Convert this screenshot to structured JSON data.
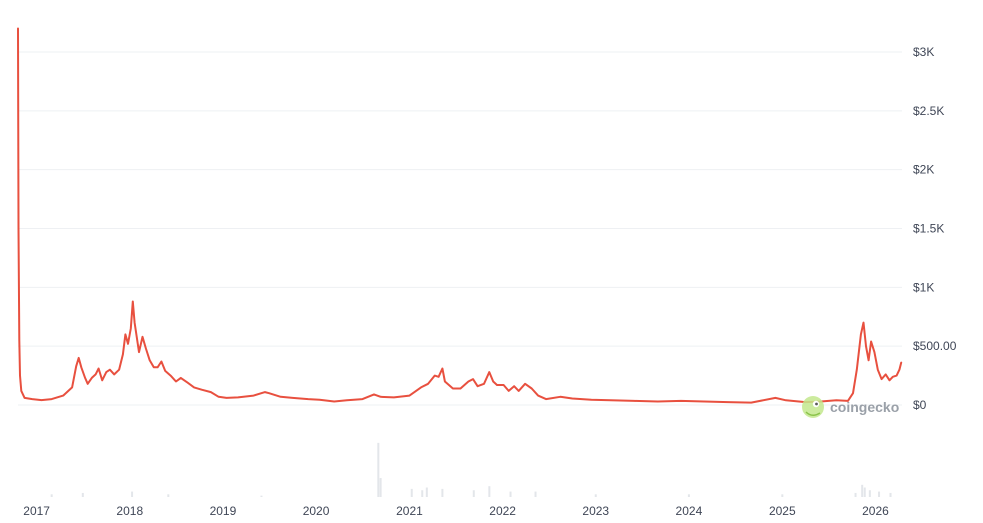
{
  "chart_data": {
    "type": "line",
    "title": "",
    "xlabel": "",
    "ylabel": "",
    "x_tick_labels": [
      "2017",
      "2018",
      "2019",
      "2020",
      "2021",
      "2022",
      "2023",
      "2024",
      "2025",
      "2026"
    ],
    "y_tick_labels": [
      "$0",
      "$500.00",
      "$1K",
      "$1.5K",
      "$2K",
      "$2.5K",
      "$3K"
    ],
    "y_tick_values": [
      0,
      500,
      1000,
      1500,
      2000,
      2500,
      3000
    ],
    "ylim": [
      0,
      3200
    ],
    "xlim": [
      "2016-10-20",
      "2026-04-15"
    ],
    "grid": "horizontal",
    "line_color": "#e8503f",
    "volume_color": "#e3e6ea",
    "series": [
      {
        "points": [
          [
            "2016-10-20",
            3200
          ],
          [
            "2016-10-22",
            1500
          ],
          [
            "2016-10-25",
            550
          ],
          [
            "2016-10-28",
            250
          ],
          [
            "2016-11-02",
            120
          ],
          [
            "2016-11-15",
            60
          ],
          [
            "2016-12-15",
            50
          ],
          [
            "2017-01-20",
            42
          ],
          [
            "2017-03-01",
            50
          ],
          [
            "2017-04-15",
            80
          ],
          [
            "2017-05-20",
            150
          ],
          [
            "2017-06-05",
            330
          ],
          [
            "2017-06-15",
            400
          ],
          [
            "2017-06-25",
            320
          ],
          [
            "2017-07-10",
            230
          ],
          [
            "2017-07-20",
            180
          ],
          [
            "2017-08-05",
            230
          ],
          [
            "2017-08-20",
            260
          ],
          [
            "2017-09-01",
            310
          ],
          [
            "2017-09-15",
            210
          ],
          [
            "2017-10-01",
            280
          ],
          [
            "2017-10-15",
            300
          ],
          [
            "2017-11-01",
            260
          ],
          [
            "2017-11-20",
            300
          ],
          [
            "2017-12-05",
            430
          ],
          [
            "2017-12-15",
            600
          ],
          [
            "2017-12-25",
            520
          ],
          [
            "2018-01-05",
            650
          ],
          [
            "2018-01-13",
            880
          ],
          [
            "2018-01-20",
            700
          ],
          [
            "2018-02-06",
            450
          ],
          [
            "2018-02-20",
            580
          ],
          [
            "2018-03-05",
            480
          ],
          [
            "2018-03-20",
            380
          ],
          [
            "2018-04-05",
            320
          ],
          [
            "2018-04-20",
            320
          ],
          [
            "2018-05-05",
            370
          ],
          [
            "2018-05-20",
            290
          ],
          [
            "2018-06-10",
            250
          ],
          [
            "2018-07-01",
            200
          ],
          [
            "2018-07-20",
            230
          ],
          [
            "2018-08-15",
            190
          ],
          [
            "2018-09-10",
            150
          ],
          [
            "2018-10-10",
            130
          ],
          [
            "2018-11-15",
            110
          ],
          [
            "2018-12-15",
            70
          ],
          [
            "2019-01-15",
            60
          ],
          [
            "2019-03-01",
            65
          ],
          [
            "2019-05-01",
            80
          ],
          [
            "2019-06-15",
            110
          ],
          [
            "2019-07-01",
            100
          ],
          [
            "2019-08-15",
            70
          ],
          [
            "2019-10-01",
            60
          ],
          [
            "2019-12-01",
            50
          ],
          [
            "2020-01-15",
            45
          ],
          [
            "2020-03-12",
            30
          ],
          [
            "2020-05-01",
            40
          ],
          [
            "2020-07-01",
            50
          ],
          [
            "2020-08-15",
            90
          ],
          [
            "2020-09-10",
            70
          ],
          [
            "2020-11-01",
            65
          ],
          [
            "2021-01-01",
            80
          ],
          [
            "2021-02-15",
            150
          ],
          [
            "2021-03-15",
            180
          ],
          [
            "2021-04-10",
            250
          ],
          [
            "2021-04-25",
            240
          ],
          [
            "2021-05-10",
            310
          ],
          [
            "2021-05-20",
            200
          ],
          [
            "2021-06-20",
            140
          ],
          [
            "2021-07-20",
            140
          ],
          [
            "2021-08-20",
            200
          ],
          [
            "2021-09-07",
            220
          ],
          [
            "2021-09-25",
            160
          ],
          [
            "2021-10-20",
            180
          ],
          [
            "2021-11-10",
            280
          ],
          [
            "2021-11-25",
            200
          ],
          [
            "2021-12-10",
            170
          ],
          [
            "2022-01-05",
            170
          ],
          [
            "2022-01-25",
            120
          ],
          [
            "2022-02-15",
            160
          ],
          [
            "2022-03-05",
            120
          ],
          [
            "2022-03-30",
            180
          ],
          [
            "2022-04-25",
            140
          ],
          [
            "2022-05-20",
            80
          ],
          [
            "2022-06-20",
            50
          ],
          [
            "2022-08-15",
            70
          ],
          [
            "2022-10-01",
            55
          ],
          [
            "2022-12-15",
            45
          ],
          [
            "2023-03-01",
            40
          ],
          [
            "2023-06-01",
            35
          ],
          [
            "2023-09-01",
            30
          ],
          [
            "2023-12-01",
            35
          ],
          [
            "2024-03-01",
            30
          ],
          [
            "2024-06-01",
            25
          ],
          [
            "2024-09-01",
            20
          ],
          [
            "2024-12-05",
            60
          ],
          [
            "2025-01-15",
            40
          ],
          [
            "2025-04-01",
            25
          ],
          [
            "2025-06-01",
            30
          ],
          [
            "2025-08-01",
            40
          ],
          [
            "2025-09-15",
            35
          ],
          [
            "2025-10-05",
            100
          ],
          [
            "2025-10-20",
            300
          ],
          [
            "2025-11-05",
            600
          ],
          [
            "2025-11-15",
            700
          ],
          [
            "2025-11-25",
            500
          ],
          [
            "2025-12-05",
            380
          ],
          [
            "2025-12-15",
            540
          ],
          [
            "2025-12-28",
            450
          ],
          [
            "2026-01-10",
            300
          ],
          [
            "2026-01-25",
            220
          ],
          [
            "2026-02-10",
            260
          ],
          [
            "2026-02-25",
            210
          ],
          [
            "2026-03-10",
            240
          ],
          [
            "2026-03-25",
            250
          ],
          [
            "2026-04-05",
            300
          ],
          [
            "2026-04-12",
            360
          ]
        ]
      }
    ],
    "volume": [
      [
        "2017-03-01",
        2
      ],
      [
        "2017-07-01",
        3
      ],
      [
        "2018-01-10",
        4
      ],
      [
        "2018-06-01",
        2
      ],
      [
        "2019-06-01",
        1
      ],
      [
        "2020-09-01",
        40
      ],
      [
        "2020-09-10",
        14
      ],
      [
        "2021-01-10",
        6
      ],
      [
        "2021-02-20",
        5
      ],
      [
        "2021-03-10",
        7
      ],
      [
        "2021-05-10",
        6
      ],
      [
        "2021-09-10",
        5
      ],
      [
        "2021-11-10",
        8
      ],
      [
        "2022-02-01",
        4
      ],
      [
        "2022-05-10",
        4
      ],
      [
        "2023-01-01",
        2
      ],
      [
        "2024-01-01",
        2
      ],
      [
        "2025-01-01",
        2
      ],
      [
        "2025-10-15",
        3
      ],
      [
        "2025-11-10",
        9
      ],
      [
        "2025-11-20",
        7
      ],
      [
        "2025-12-10",
        5
      ],
      [
        "2026-01-15",
        4
      ],
      [
        "2026-03-01",
        3
      ]
    ]
  },
  "watermark": {
    "text": "coingecko",
    "icon": "gecko-logo-icon"
  }
}
